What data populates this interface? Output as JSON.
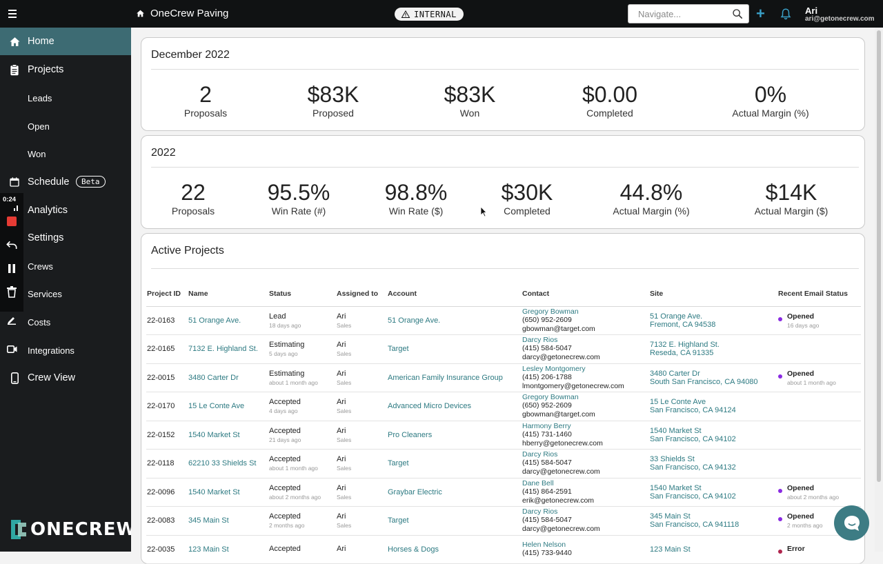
{
  "header": {
    "company": "OneCrew Paving",
    "badge": "INTERNAL",
    "navigate_placeholder": "Navigate...",
    "user_name": "Ari",
    "user_email": "ari@getonecrew.com"
  },
  "sidebar": {
    "items": [
      {
        "label": "Home",
        "icon": "home-icon"
      },
      {
        "label": "Projects",
        "icon": "clipboard-icon"
      },
      {
        "label": "Leads"
      },
      {
        "label": "Open"
      },
      {
        "label": "Won"
      },
      {
        "label": "Schedule",
        "icon": "calendar-icon",
        "badge": "Beta"
      },
      {
        "label": "Analytics",
        "icon": "chart-icon"
      },
      {
        "label": "Settings",
        "icon": "settings-icon"
      },
      {
        "label": "Crews",
        "icon": "crews-icon"
      },
      {
        "label": "Services",
        "icon": "services-icon"
      },
      {
        "label": "Costs",
        "icon": "costs-icon"
      },
      {
        "label": "Integrations",
        "icon": "integrations-icon"
      },
      {
        "label": "Crew View",
        "icon": "phone-icon"
      }
    ],
    "recording_time": "0:24",
    "logo_text": "ONECREW"
  },
  "month_card": {
    "title": "December 2022",
    "stats": [
      {
        "value": "2",
        "label": "Proposals"
      },
      {
        "value": "$83K",
        "label": "Proposed"
      },
      {
        "value": "$83K",
        "label": "Won"
      },
      {
        "value": "$0.00",
        "label": "Completed"
      },
      {
        "value": "0%",
        "label": "Actual Margin (%)"
      }
    ]
  },
  "year_card": {
    "title": "2022",
    "stats": [
      {
        "value": "22",
        "label": "Proposals"
      },
      {
        "value": "95.5%",
        "label": "Win Rate (#)"
      },
      {
        "value": "98.8%",
        "label": "Win Rate ($)"
      },
      {
        "value": "$30K",
        "label": "Completed"
      },
      {
        "value": "44.8%",
        "label": "Actual Margin (%)"
      },
      {
        "value": "$14K",
        "label": "Actual Margin ($)"
      }
    ]
  },
  "projects": {
    "title": "Active Projects",
    "columns": [
      "Project ID",
      "Name",
      "Status",
      "Assigned to",
      "Account",
      "Contact",
      "Site",
      "Recent Email Status"
    ],
    "rows": [
      {
        "id": "22-0163",
        "name": "51 Orange Ave.",
        "status": "Lead",
        "status_time": "18 days ago",
        "assignee": "Ari",
        "role": "Sales",
        "account": "51 Orange Ave.",
        "contact_name": "Gregory Bowman",
        "contact_phone": "(650) 952-2609",
        "contact_email": "gbowman@target.com",
        "site_line1": "51 Orange Ave.",
        "site_line2": "Fremont, CA 94538",
        "email_status": "Opened",
        "email_time": "16 days ago",
        "email_type": "opened"
      },
      {
        "id": "22-0165",
        "name": "7132 E. Highland St.",
        "status": "Estimating",
        "status_time": "5 days ago",
        "assignee": "Ari",
        "role": "Sales",
        "account": "Target",
        "contact_name": "Darcy Rios",
        "contact_phone": "(415) 584-5047",
        "contact_email": "darcy@getonecrew.com",
        "site_line1": "7132 E. Highland St.",
        "site_line2": "Reseda, CA 91335",
        "email_status": "",
        "email_time": "",
        "email_type": "none"
      },
      {
        "id": "22-0015",
        "name": "3480 Carter Dr",
        "status": "Estimating",
        "status_time": "about 1 month ago",
        "assignee": "Ari",
        "role": "Sales",
        "account": "American Family Insurance Group",
        "contact_name": "Lesley Montgomery",
        "contact_phone": "(415) 206-1788",
        "contact_email": "lmontgomery@getonecrew.com",
        "site_line1": "3480 Carter Dr",
        "site_line2": "South San Francisco, CA 94080",
        "email_status": "Opened",
        "email_time": "about 1 month ago",
        "email_type": "opened"
      },
      {
        "id": "22-0170",
        "name": "15 Le Conte Ave",
        "status": "Accepted",
        "status_time": "4 days ago",
        "assignee": "Ari",
        "role": "Sales",
        "account": "Advanced Micro Devices",
        "contact_name": "Gregory Bowman",
        "contact_phone": "(650) 952-2609",
        "contact_email": "gbowman@target.com",
        "site_line1": "15 Le Conte Ave",
        "site_line2": "San Francisco, CA 94124",
        "email_status": "",
        "email_time": "",
        "email_type": "none"
      },
      {
        "id": "22-0152",
        "name": "1540 Market St",
        "status": "Accepted",
        "status_time": "21 days ago",
        "assignee": "Ari",
        "role": "Sales",
        "account": "Pro Cleaners",
        "contact_name": "Harmony Berry",
        "contact_phone": "(415) 731-1460",
        "contact_email": "hberry@getonecrew.com",
        "site_line1": "1540 Market St",
        "site_line2": "San Francisco, CA 94102",
        "email_status": "",
        "email_time": "",
        "email_type": "none"
      },
      {
        "id": "22-0118",
        "name": "62210 33 Shields St",
        "status": "Accepted",
        "status_time": "about 1 month ago",
        "assignee": "Ari",
        "role": "Sales",
        "account": "Target",
        "contact_name": "Darcy Rios",
        "contact_phone": "(415) 584-5047",
        "contact_email": "darcy@getonecrew.com",
        "site_line1": "33 Shields St",
        "site_line2": "San Francisco, CA 94132",
        "email_status": "",
        "email_time": "",
        "email_type": "none"
      },
      {
        "id": "22-0096",
        "name": "1540 Market St",
        "status": "Accepted",
        "status_time": "about 2 months ago",
        "assignee": "Ari",
        "role": "Sales",
        "account": "Graybar Electric",
        "contact_name": "Dane Bell",
        "contact_phone": "(415) 864-2591",
        "contact_email": "erik@getonecrew.com",
        "site_line1": "1540 Market St",
        "site_line2": "San Francisco, CA 94102",
        "email_status": "Opened",
        "email_time": "about 2 months ago",
        "email_type": "opened"
      },
      {
        "id": "22-0083",
        "name": "345 Main St",
        "status": "Accepted",
        "status_time": "2 months ago",
        "assignee": "Ari",
        "role": "Sales",
        "account": "Target",
        "contact_name": "Darcy Rios",
        "contact_phone": "(415) 584-5047",
        "contact_email": "darcy@getonecrew.com",
        "site_line1": "345 Main St",
        "site_line2": "San Francisco, CA 941118",
        "email_status": "Opened",
        "email_time": "2 months ago",
        "email_type": "opened"
      },
      {
        "id": "22-0035",
        "name": "123 Main St",
        "status": "Accepted",
        "status_time": "",
        "assignee": "Ari",
        "role": "",
        "account": "Horses & Dogs",
        "contact_name": "Helen Nelson",
        "contact_phone": "(415) 733-9440",
        "contact_email": "",
        "site_line1": "123 Main St",
        "site_line2": "",
        "email_status": "Error",
        "email_time": "",
        "email_type": "error"
      }
    ]
  },
  "colors": {
    "accent": "#2d7a82",
    "sidebar_active": "#3d6b73",
    "sidebar_bg": "#1a1c1e",
    "topbar_bg": "#101213",
    "opened_dot": "#8a2be2",
    "error_dot": "#b0264e"
  }
}
